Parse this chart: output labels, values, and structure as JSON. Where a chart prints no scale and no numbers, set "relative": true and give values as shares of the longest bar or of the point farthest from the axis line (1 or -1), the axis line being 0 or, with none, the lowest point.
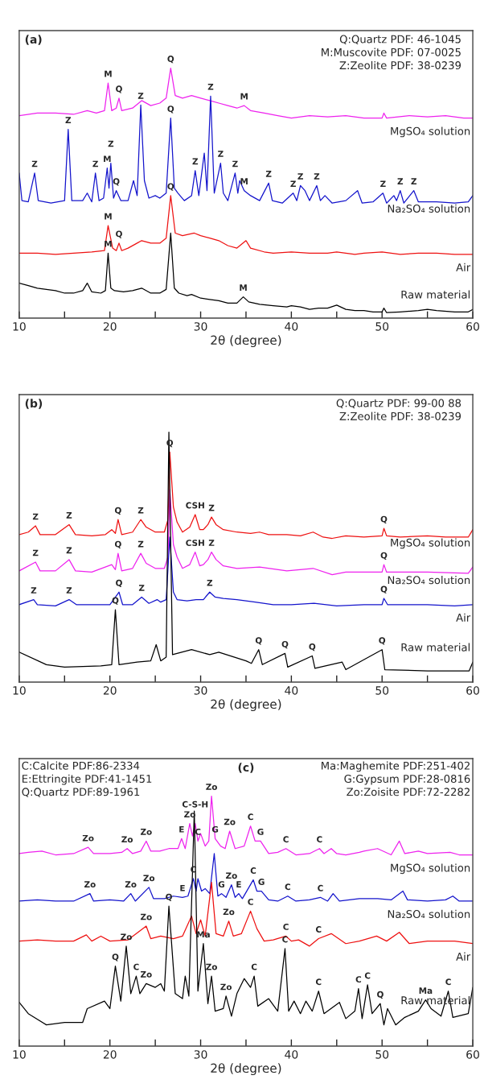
{
  "chart_data": [
    {
      "type": "line",
      "relative": true,
      "xlabel": "2θ (degree)",
      "xlim": [
        10,
        60
      ],
      "xticks": [
        10,
        {
          "value": 15,
          "label": null
        },
        20,
        {
          "value": 25,
          "label": null
        },
        30,
        {
          "value": 35,
          "label": null
        },
        40,
        {
          "value": 45,
          "label": null
        },
        50,
        {
          "value": 55,
          "label": null
        },
        60
      ],
      "series": [
        {
          "name": "MgSO₄ solution",
          "color": "#ee22ee",
          "x": [
            10,
            12,
            14,
            16,
            17.5,
            18.5,
            19.4,
            19.8,
            20.2,
            20.7,
            21,
            21.3,
            22.5,
            23.5,
            24.5,
            25.5,
            26.2,
            26.7,
            27.2,
            28,
            29,
            30,
            31,
            32,
            33,
            34,
            34.8,
            35.5,
            37,
            38.5,
            40,
            42,
            44,
            46,
            48,
            50,
            50.2,
            50.5,
            53,
            55,
            57,
            59,
            60
          ],
          "values": [
            0.81,
            0.82,
            0.82,
            0.815,
            0.83,
            0.82,
            0.83,
            0.94,
            0.83,
            0.84,
            0.88,
            0.83,
            0.84,
            0.87,
            0.85,
            0.86,
            0.88,
            1.0,
            0.89,
            0.88,
            0.89,
            0.88,
            0.87,
            0.86,
            0.85,
            0.84,
            0.85,
            0.83,
            0.82,
            0.81,
            0.8,
            0.81,
            0.805,
            0.81,
            0.8,
            0.8,
            0.82,
            0.8,
            0.81,
            0.805,
            0.81,
            0.8,
            0.8
          ]
        },
        {
          "name": "Na₂SO₄ solution",
          "color": "#1414cc",
          "x": [
            10,
            10.3,
            11,
            11.7,
            12.1,
            13.5,
            15,
            15.4,
            15.8,
            17,
            17.5,
            18,
            18.4,
            18.8,
            19.3,
            19.7,
            19.9,
            20.1,
            20.4,
            20.7,
            21.2,
            22,
            22.6,
            23,
            23.4,
            23.8,
            24.3,
            25,
            25.5,
            26.2,
            26.7,
            27.1,
            27.5,
            28.2,
            29,
            29.4,
            29.8,
            30.4,
            30.7,
            31.1,
            31.5,
            32.2,
            32.5,
            33,
            33.8,
            34.1,
            34.3,
            34.8,
            35.5,
            36.5,
            37.5,
            37.9,
            39,
            40.2,
            40.6,
            41,
            41.5,
            42,
            42.8,
            43.2,
            43.7,
            44.5,
            46,
            47.3,
            47.8,
            49,
            50.1,
            50.5,
            51.3,
            51.6,
            52,
            52.4,
            53.5,
            54,
            56,
            58,
            59.5,
            60
          ],
          "values": [
            0.58,
            0.47,
            0.465,
            0.58,
            0.47,
            0.46,
            0.47,
            0.755,
            0.47,
            0.47,
            0.5,
            0.465,
            0.58,
            0.47,
            0.48,
            0.6,
            0.52,
            0.62,
            0.48,
            0.51,
            0.47,
            0.47,
            0.55,
            0.49,
            0.852,
            0.55,
            0.48,
            0.49,
            0.48,
            0.5,
            0.8,
            0.52,
            0.5,
            0.47,
            0.49,
            0.59,
            0.49,
            0.66,
            0.51,
            0.888,
            0.5,
            0.62,
            0.5,
            0.47,
            0.58,
            0.5,
            0.55,
            0.51,
            0.49,
            0.47,
            0.54,
            0.47,
            0.46,
            0.5,
            0.47,
            0.53,
            0.51,
            0.47,
            0.53,
            0.47,
            0.49,
            0.46,
            0.47,
            0.51,
            0.46,
            0.465,
            0.5,
            0.46,
            0.49,
            0.47,
            0.51,
            0.46,
            0.51,
            0.465,
            0.465,
            0.46,
            0.465,
            0.49
          ]
        },
        {
          "name": "Air",
          "color": "#ee1111",
          "x": [
            10,
            12,
            14,
            16,
            18,
            19.4,
            19.8,
            20.3,
            20.7,
            21,
            21.3,
            22,
            23,
            23.5,
            24.5,
            25.5,
            26.2,
            26.7,
            27.2,
            28,
            29.3,
            30,
            31,
            32,
            33,
            34,
            35,
            35.5,
            37,
            38,
            40,
            42,
            44,
            45,
            47,
            48,
            50,
            52,
            54,
            56,
            58,
            60
          ],
          "values": [
            0.26,
            0.26,
            0.255,
            0.26,
            0.265,
            0.27,
            0.37,
            0.28,
            0.27,
            0.3,
            0.27,
            0.28,
            0.3,
            0.31,
            0.3,
            0.3,
            0.32,
            0.49,
            0.34,
            0.33,
            0.34,
            0.33,
            0.32,
            0.31,
            0.29,
            0.28,
            0.31,
            0.28,
            0.265,
            0.26,
            0.265,
            0.26,
            0.26,
            0.265,
            0.255,
            0.26,
            0.265,
            0.255,
            0.26,
            0.26,
            0.255,
            0.255
          ]
        },
        {
          "name": "Raw material",
          "color": "#000000",
          "x": [
            10,
            11,
            12,
            13,
            14,
            15,
            16,
            17,
            17.5,
            18,
            19,
            19.5,
            19.8,
            20.1,
            20.5,
            21.5,
            22.5,
            23,
            23.5,
            24.5,
            25.5,
            26.2,
            26.7,
            27.1,
            27.6,
            28.5,
            29,
            30,
            31,
            32,
            33,
            34,
            34.7,
            35.3,
            36.5,
            38,
            39.5,
            40,
            41,
            42,
            43,
            44,
            45,
            46,
            47,
            48,
            49,
            50,
            50.2,
            50.5,
            52,
            54,
            55,
            56,
            58,
            59.5,
            60
          ],
          "values": [
            0.14,
            0.13,
            0.12,
            0.115,
            0.11,
            0.1,
            0.1,
            0.11,
            0.14,
            0.105,
            0.1,
            0.11,
            0.26,
            0.12,
            0.11,
            0.105,
            0.11,
            0.115,
            0.12,
            0.1,
            0.1,
            0.115,
            0.34,
            0.12,
            0.1,
            0.09,
            0.095,
            0.08,
            0.075,
            0.07,
            0.06,
            0.06,
            0.085,
            0.065,
            0.055,
            0.05,
            0.045,
            0.05,
            0.045,
            0.035,
            0.04,
            0.04,
            0.052,
            0.035,
            0.03,
            0.03,
            0.025,
            0.025,
            0.04,
            0.022,
            0.025,
            0.03,
            0.035,
            0.03,
            0.025,
            0.025,
            0.035
          ]
        }
      ],
      "annotations": [
        "(a)",
        "Q:Quartz PDF: 46-1045",
        "M:Muscovite PDF: 07-0025",
        "Z:Zeolite PDF: 38-0239",
        {
          "text": "M",
          "x": 19.8,
          "y": 0.94
        },
        {
          "text": "Q",
          "x": 21,
          "y": 0.88
        },
        {
          "text": "Q",
          "x": 26.7,
          "y": 1.0
        },
        {
          "text": "M",
          "x": 34.8,
          "y": 0.85
        },
        {
          "text": "Z",
          "x": 11.7,
          "y": 0.58
        },
        {
          "text": "Z",
          "x": 15.4,
          "y": 0.755
        },
        {
          "text": "Z",
          "x": 18.4,
          "y": 0.58
        },
        {
          "text": "M",
          "x": 19.7,
          "y": 0.6
        },
        {
          "text": "Z",
          "x": 20.1,
          "y": 0.62
        },
        {
          "text": "Q",
          "x": 20.7,
          "y": 0.51
        },
        {
          "text": "Z",
          "x": 23.4,
          "y": 0.852
        },
        {
          "text": "Q",
          "x": 26.7,
          "y": 0.8
        },
        {
          "text": "Z",
          "x": 29.4,
          "y": 0.59
        },
        {
          "text": "Z",
          "x": 31.1,
          "y": 0.888
        },
        {
          "text": "Z",
          "x": 32.2,
          "y": 0.62
        },
        {
          "text": "Z",
          "x": 33.8,
          "y": 0.58
        },
        {
          "text": "M",
          "x": 34.8,
          "y": 0.51
        },
        {
          "text": "Z",
          "x": 37.5,
          "y": 0.54
        },
        {
          "text": "Z",
          "x": 40.2,
          "y": 0.5
        },
        {
          "text": "Z",
          "x": 41,
          "y": 0.53
        },
        {
          "text": "Z",
          "x": 42.8,
          "y": 0.53
        },
        {
          "text": "Z",
          "x": 50.1,
          "y": 0.5
        },
        {
          "text": "Z",
          "x": 52,
          "y": 0.51
        },
        {
          "text": "Z",
          "x": 53.5,
          "y": 0.51
        },
        {
          "text": "M",
          "x": 19.8,
          "y": 0.37
        },
        {
          "text": "Q",
          "x": 21,
          "y": 0.3
        },
        {
          "text": "Q",
          "x": 26.7,
          "y": 0.49
        },
        {
          "text": "M",
          "x": 19.8,
          "y": 0.26
        },
        {
          "text": "M",
          "x": 34.7,
          "y": 0.085
        }
      ]
    },
    {
      "type": "line",
      "relative": true,
      "xlabel": "2θ (degree)",
      "xlim": [
        10,
        60
      ],
      "xticks": [
        10,
        {
          "value": 15,
          "label": null
        },
        20,
        {
          "value": 25,
          "label": null
        },
        30,
        {
          "value": 35,
          "label": null
        },
        40,
        {
          "value": 45,
          "label": null
        },
        50,
        {
          "value": 55,
          "label": null
        },
        60
      ],
      "series": [
        {
          "name": "MgSO₄ solution",
          "color": "#ee1111",
          "x": [
            10,
            11,
            11.8,
            12.3,
            14,
            15.5,
            16.2,
            18,
            19.5,
            20.2,
            20.6,
            20.9,
            21.3,
            22.5,
            23.4,
            24,
            25,
            26,
            26.4,
            26.6,
            27,
            27.4,
            28,
            28.8,
            29.4,
            29.9,
            30.3,
            30.8,
            31.2,
            31.7,
            32.5,
            34,
            35.5,
            36.5,
            37.5,
            39.5,
            41,
            42.4,
            43.5,
            44.5,
            46,
            48,
            50,
            50.2,
            50.5,
            52,
            55,
            57,
            59.5,
            60
          ],
          "values": [
            0.59,
            0.6,
            0.625,
            0.59,
            0.59,
            0.63,
            0.59,
            0.585,
            0.59,
            0.61,
            0.595,
            0.65,
            0.59,
            0.6,
            0.65,
            0.62,
            0.6,
            0.6,
            0.65,
            0.92,
            0.7,
            0.64,
            0.6,
            0.62,
            0.67,
            0.61,
            0.61,
            0.63,
            0.66,
            0.63,
            0.61,
            0.6,
            0.595,
            0.6,
            0.59,
            0.59,
            0.585,
            0.6,
            0.58,
            0.575,
            0.585,
            0.58,
            0.585,
            0.615,
            0.585,
            0.58,
            0.585,
            0.58,
            0.58,
            0.61
          ]
        },
        {
          "name": "Na₂SO₄ solution",
          "color": "#ee22ee",
          "x": [
            10,
            11.8,
            12.3,
            14,
            15.5,
            16.2,
            18,
            20.2,
            20.6,
            20.9,
            21.3,
            22.5,
            23.4,
            24,
            25,
            26,
            26.4,
            26.6,
            27,
            27.4,
            28,
            28.8,
            29.4,
            29.9,
            30.3,
            30.8,
            31.2,
            31.7,
            32.5,
            34,
            36.5,
            39.5,
            42.4,
            44.5,
            46,
            50,
            50.2,
            50.5,
            55,
            59.5,
            60
          ],
          "values": [
            0.445,
            0.48,
            0.445,
            0.445,
            0.49,
            0.445,
            0.44,
            0.47,
            0.45,
            0.515,
            0.445,
            0.455,
            0.515,
            0.475,
            0.455,
            0.455,
            0.5,
            0.77,
            0.55,
            0.5,
            0.455,
            0.47,
            0.52,
            0.465,
            0.47,
            0.49,
            0.52,
            0.49,
            0.465,
            0.455,
            0.46,
            0.445,
            0.455,
            0.43,
            0.44,
            0.44,
            0.47,
            0.44,
            0.44,
            0.435,
            0.46
          ]
        },
        {
          "name": "Air",
          "color": "#1414cc",
          "x": [
            10,
            11.6,
            12,
            14,
            15.5,
            16.3,
            18,
            20,
            21,
            21.4,
            22.5,
            23.5,
            24.3,
            25.2,
            25.6,
            26.2,
            26.6,
            27,
            27.4,
            28.5,
            29.5,
            30.3,
            31,
            31.6,
            32.5,
            34,
            36,
            38,
            40,
            42.5,
            45,
            48,
            50,
            50.2,
            50.6,
            53,
            55,
            58,
            60
          ],
          "values": [
            0.31,
            0.33,
            0.31,
            0.305,
            0.33,
            0.31,
            0.31,
            0.31,
            0.36,
            0.31,
            0.31,
            0.34,
            0.315,
            0.33,
            0.32,
            0.33,
            0.58,
            0.36,
            0.33,
            0.325,
            0.33,
            0.33,
            0.36,
            0.34,
            0.335,
            0.33,
            0.32,
            0.31,
            0.31,
            0.315,
            0.305,
            0.31,
            0.31,
            0.335,
            0.31,
            0.31,
            0.31,
            0.305,
            0.31
          ]
        },
        {
          "name": "Raw material",
          "color": "#000000",
          "x": [
            10,
            13,
            15,
            19,
            20.2,
            20.6,
            21,
            23,
            24.5,
            25.1,
            25.6,
            26.2,
            26.5,
            26.9,
            29,
            31,
            32,
            35,
            35.6,
            36.4,
            36.8,
            39.3,
            39.6,
            42.3,
            42.6,
            45.6,
            46,
            50,
            50.3,
            55,
            59.6,
            60
          ],
          "values": [
            0.12,
            0.07,
            0.06,
            0.065,
            0.07,
            0.29,
            0.07,
            0.08,
            0.085,
            0.15,
            0.085,
            0.1,
            1.0,
            0.11,
            0.13,
            0.11,
            0.12,
            0.085,
            0.075,
            0.13,
            0.07,
            0.115,
            0.06,
            0.105,
            0.055,
            0.08,
            0.05,
            0.13,
            0.05,
            0.045,
            0.045,
            0.08
          ]
        }
      ],
      "annotations": [
        "(b)",
        "Q:Quartz PDF: 99-00 88",
        "Z:Zeolite PDF: 38-0239",
        {
          "text": "Z",
          "x": 11.8,
          "y": 0.625
        },
        {
          "text": "Z",
          "x": 15.5,
          "y": 0.63
        },
        {
          "text": "Q",
          "x": 20.9,
          "y": 0.65
        },
        {
          "text": "Z",
          "x": 23.4,
          "y": 0.65
        },
        {
          "text": "Q",
          "x": 26.6,
          "y": 0.92
        },
        {
          "text": "CSH",
          "x": 29.4,
          "y": 0.67
        },
        {
          "text": "Z",
          "x": 31.2,
          "y": 0.66
        },
        {
          "text": "Q",
          "x": 50.2,
          "y": 0.615
        },
        {
          "text": "Z",
          "x": 11.8,
          "y": 0.48
        },
        {
          "text": "Z",
          "x": 15.5,
          "y": 0.49
        },
        {
          "text": "Q",
          "x": 20.9,
          "y": 0.515
        },
        {
          "text": "Z",
          "x": 23.4,
          "y": 0.515
        },
        {
          "text": "CSH",
          "x": 29.4,
          "y": 0.52
        },
        {
          "text": "Z",
          "x": 31.2,
          "y": 0.52
        },
        {
          "text": "Q",
          "x": 50.2,
          "y": 0.47
        },
        {
          "text": "Z",
          "x": 11.6,
          "y": 0.33
        },
        {
          "text": "Z",
          "x": 15.5,
          "y": 0.33
        },
        {
          "text": "Q",
          "x": 21,
          "y": 0.36
        },
        {
          "text": "Z",
          "x": 23.5,
          "y": 0.34
        },
        {
          "text": "Z",
          "x": 31,
          "y": 0.36
        },
        {
          "text": "Q",
          "x": 50.2,
          "y": 0.335
        },
        {
          "text": "Q",
          "x": 20.6,
          "y": 0.29
        },
        {
          "text": "Q",
          "x": 36.4,
          "y": 0.13
        },
        {
          "text": "Q",
          "x": 39.3,
          "y": 0.115
        },
        {
          "text": "Q",
          "x": 42.3,
          "y": 0.105
        },
        {
          "text": "Q",
          "x": 50,
          "y": 0.13
        }
      ]
    },
    {
      "type": "line",
      "relative": true,
      "xlabel": "2θ (degree)",
      "xlim": [
        10,
        60
      ],
      "xticks": [
        10,
        {
          "value": 15,
          "label": null
        },
        20,
        {
          "value": 25,
          "label": null
        },
        30,
        {
          "value": 35,
          "label": null
        },
        40,
        {
          "value": 45,
          "label": null
        },
        50,
        {
          "value": 55,
          "label": null
        },
        60
      ],
      "series": [
        {
          "name": "MgSO₄ solution",
          "color": "#ee22ee",
          "x": [
            10,
            11,
            12.5,
            14,
            16,
            17.6,
            18.2,
            20,
            21.3,
            21.9,
            22.5,
            23.4,
            24,
            24.5,
            25.5,
            26.5,
            27.5,
            27.9,
            28.3,
            28.8,
            29.1,
            29.4,
            29.7,
            30,
            30.5,
            30.9,
            31.2,
            31.6,
            32.2,
            32.7,
            33.2,
            33.8,
            34.8,
            35.5,
            36,
            36.6,
            37.5,
            38.5,
            39.4,
            40.5,
            42,
            43.1,
            43.6,
            44.4,
            45,
            46,
            47.5,
            48,
            49.5,
            51,
            51.9,
            52.5,
            54,
            55,
            57.5,
            58.5,
            60
          ],
          "values": [
            0.77,
            0.775,
            0.78,
            0.765,
            0.77,
            0.795,
            0.77,
            0.77,
            0.775,
            0.79,
            0.77,
            0.78,
            0.82,
            0.78,
            0.78,
            0.79,
            0.79,
            0.83,
            0.79,
            0.89,
            0.84,
            0.89,
            0.82,
            0.85,
            0.8,
            0.82,
            1.0,
            0.83,
            0.8,
            0.79,
            0.86,
            0.79,
            0.8,
            0.88,
            0.82,
            0.82,
            0.77,
            0.775,
            0.79,
            0.765,
            0.77,
            0.79,
            0.77,
            0.79,
            0.77,
            0.765,
            0.775,
            0.78,
            0.79,
            0.765,
            0.82,
            0.77,
            0.78,
            0.77,
            0.775,
            0.765,
            0.765
          ]
        },
        {
          "name": "Na₂SO₄ solution",
          "color": "#1414cc",
          "x": [
            10,
            12,
            14,
            16,
            17.8,
            18.2,
            20,
            21.5,
            22.3,
            22.8,
            24.3,
            24.8,
            26,
            27,
            28,
            28.6,
            29.2,
            29.5,
            29.7,
            30.1,
            30.5,
            31,
            31.5,
            31.9,
            32.3,
            32.8,
            33.4,
            33.8,
            34.2,
            34.6,
            35.8,
            36.2,
            36.7,
            37.5,
            38.5,
            39.6,
            40.5,
            42,
            43.2,
            44,
            44.6,
            45.3,
            47.5,
            49.5,
            51,
            52.3,
            52.8,
            55,
            57,
            57.8,
            58.5,
            60
          ],
          "values": [
            0.58,
            0.585,
            0.58,
            0.58,
            0.61,
            0.58,
            0.585,
            0.58,
            0.61,
            0.58,
            0.635,
            0.59,
            0.59,
            0.6,
            0.595,
            0.6,
            0.67,
            0.62,
            0.67,
            0.62,
            0.63,
            0.61,
            0.77,
            0.6,
            0.61,
            0.595,
            0.645,
            0.595,
            0.61,
            0.59,
            0.665,
            0.62,
            0.62,
            0.585,
            0.58,
            0.6,
            0.58,
            0.585,
            0.595,
            0.58,
            0.61,
            0.58,
            0.59,
            0.59,
            0.585,
            0.62,
            0.585,
            0.58,
            0.585,
            0.6,
            0.58,
            0.58
          ]
        },
        {
          "name": "Air",
          "color": "#ee1111",
          "x": [
            10,
            12,
            14,
            16,
            17.4,
            18,
            19,
            20,
            22,
            24,
            24.5,
            25.6,
            27,
            28,
            29,
            29.5,
            30,
            30.5,
            31.2,
            31.7,
            32.5,
            33.1,
            33.6,
            34.5,
            35.5,
            36.2,
            37,
            38,
            39.4,
            40,
            40.8,
            42,
            43,
            44.4,
            46,
            47.5,
            49.4,
            50.5,
            51.9,
            53,
            55,
            58,
            60
          ],
          "values": [
            0.42,
            0.425,
            0.42,
            0.42,
            0.445,
            0.42,
            0.44,
            0.42,
            0.425,
            0.48,
            0.43,
            0.44,
            0.43,
            0.44,
            0.52,
            0.45,
            0.505,
            0.44,
            0.655,
            0.45,
            0.44,
            0.5,
            0.44,
            0.45,
            0.54,
            0.47,
            0.42,
            0.425,
            0.44,
            0.42,
            0.425,
            0.4,
            0.43,
            0.45,
            0.41,
            0.42,
            0.44,
            0.42,
            0.455,
            0.41,
            0.42,
            0.42,
            0.41
          ]
        },
        {
          "name": "Raw material",
          "color": "#000000",
          "x": [
            10,
            11,
            13,
            15,
            17,
            17.5,
            19.4,
            20,
            20.6,
            21.2,
            21.8,
            22.3,
            22.9,
            23.3,
            24,
            25,
            25.6,
            26,
            26.5,
            27.2,
            28,
            28.3,
            28.7,
            29.3,
            29.7,
            30.3,
            30.8,
            31.2,
            31.6,
            32.5,
            32.8,
            33.4,
            34,
            34.8,
            35.5,
            35.9,
            36.3,
            37.5,
            38.5,
            39.3,
            39.7,
            40.3,
            41,
            41.6,
            42.3,
            43,
            43.6,
            45.3,
            46,
            47,
            47.4,
            47.8,
            48.4,
            48.9,
            49.8,
            50.2,
            50.6,
            51.5,
            52.5,
            54,
            54.8,
            55.4,
            56.5,
            57.3,
            57.8,
            59.5,
            60
          ],
          "values": [
            0.175,
            0.13,
            0.085,
            0.095,
            0.095,
            0.15,
            0.18,
            0.15,
            0.32,
            0.18,
            0.4,
            0.21,
            0.28,
            0.21,
            0.25,
            0.235,
            0.25,
            0.22,
            0.56,
            0.21,
            0.19,
            0.28,
            0.2,
            0.94,
            0.22,
            0.41,
            0.17,
            0.28,
            0.14,
            0.15,
            0.2,
            0.12,
            0.21,
            0.27,
            0.235,
            0.28,
            0.16,
            0.19,
            0.14,
            0.39,
            0.14,
            0.18,
            0.13,
            0.18,
            0.14,
            0.22,
            0.13,
            0.175,
            0.11,
            0.14,
            0.23,
            0.11,
            0.245,
            0.13,
            0.17,
            0.085,
            0.15,
            0.085,
            0.115,
            0.14,
            0.185,
            0.15,
            0.12,
            0.22,
            0.115,
            0.13,
            0.235
          ]
        }
      ],
      "annotations": [
        "(c)",
        "C:Calcite PDF:86-2334",
        "E:Ettringite PDF:41-1451",
        "Q:Quartz PDF:89-1961",
        "Ma:Maghemite PDF:251-402",
        "G:Gypsum PDF:28-0816",
        "Zo:Zoisite PDF:72-2282",
        {
          "text": "Zo",
          "x": 17.6,
          "y": 0.795
        },
        {
          "text": "Zo",
          "x": 21.9,
          "y": 0.79
        },
        {
          "text": "Zo",
          "x": 24,
          "y": 0.82
        },
        {
          "text": "E",
          "x": 27.9,
          "y": 0.83
        },
        {
          "text": "Zo",
          "x": 28.8,
          "y": 0.89
        },
        {
          "text": "C-S-H",
          "x": 29.4,
          "y": 0.89
        },
        {
          "text": "C",
          "x": 29.7,
          "y": 0.82
        },
        {
          "text": "Zo",
          "x": 31.2,
          "y": 1.0
        },
        {
          "text": "G",
          "x": 31.6,
          "y": 0.83
        },
        {
          "text": "Zo",
          "x": 33.2,
          "y": 0.86
        },
        {
          "text": "C",
          "x": 35.5,
          "y": 0.88
        },
        {
          "text": "G",
          "x": 36.6,
          "y": 0.82
        },
        {
          "text": "C",
          "x": 39.4,
          "y": 0.79
        },
        {
          "text": "C",
          "x": 43.1,
          "y": 0.79
        },
        {
          "text": "Zo",
          "x": 17.8,
          "y": 0.61
        },
        {
          "text": "Zo",
          "x": 22.3,
          "y": 0.61
        },
        {
          "text": "Zo",
          "x": 24.3,
          "y": 0.635
        },
        {
          "text": "E",
          "x": 28,
          "y": 0.595
        },
        {
          "text": "C",
          "x": 29.2,
          "y": 0.67
        },
        {
          "text": "G",
          "x": 32.3,
          "y": 0.61
        },
        {
          "text": "Zo",
          "x": 33.4,
          "y": 0.645
        },
        {
          "text": "E",
          "x": 34.2,
          "y": 0.61
        },
        {
          "text": "C",
          "x": 35.8,
          "y": 0.665
        },
        {
          "text": "G",
          "x": 36.7,
          "y": 0.62
        },
        {
          "text": "C",
          "x": 39.6,
          "y": 0.6
        },
        {
          "text": "C",
          "x": 43.2,
          "y": 0.595
        },
        {
          "text": "Zo",
          "x": 24,
          "y": 0.48
        },
        {
          "text": "Q",
          "x": 26.5,
          "y": 0.56
        },
        {
          "text": "Zo",
          "x": 33.1,
          "y": 0.5
        },
        {
          "text": "C",
          "x": 35.5,
          "y": 0.54
        },
        {
          "text": "C",
          "x": 39.4,
          "y": 0.44
        },
        {
          "text": "C",
          "x": 43,
          "y": 0.43
        },
        {
          "text": "Q",
          "x": 20.6,
          "y": 0.32
        },
        {
          "text": "Zo",
          "x": 21.8,
          "y": 0.4
        },
        {
          "text": "C",
          "x": 22.9,
          "y": 0.28
        },
        {
          "text": "Zo",
          "x": 24,
          "y": 0.25
        },
        {
          "text": "Ma",
          "x": 30.3,
          "y": 0.41
        },
        {
          "text": "Zo",
          "x": 31.2,
          "y": 0.28
        },
        {
          "text": "C",
          "x": 35.9,
          "y": 0.28
        },
        {
          "text": "Zo",
          "x": 32.8,
          "y": 0.2
        },
        {
          "text": "C",
          "x": 39.3,
          "y": 0.39
        },
        {
          "text": "C",
          "x": 43,
          "y": 0.22
        },
        {
          "text": "C",
          "x": 47.4,
          "y": 0.23
        },
        {
          "text": "C",
          "x": 48.4,
          "y": 0.245
        },
        {
          "text": "Q",
          "x": 49.8,
          "y": 0.17
        },
        {
          "text": "Ma",
          "x": 54.8,
          "y": 0.185
        },
        {
          "text": "C",
          "x": 57.3,
          "y": 0.22
        }
      ]
    }
  ]
}
